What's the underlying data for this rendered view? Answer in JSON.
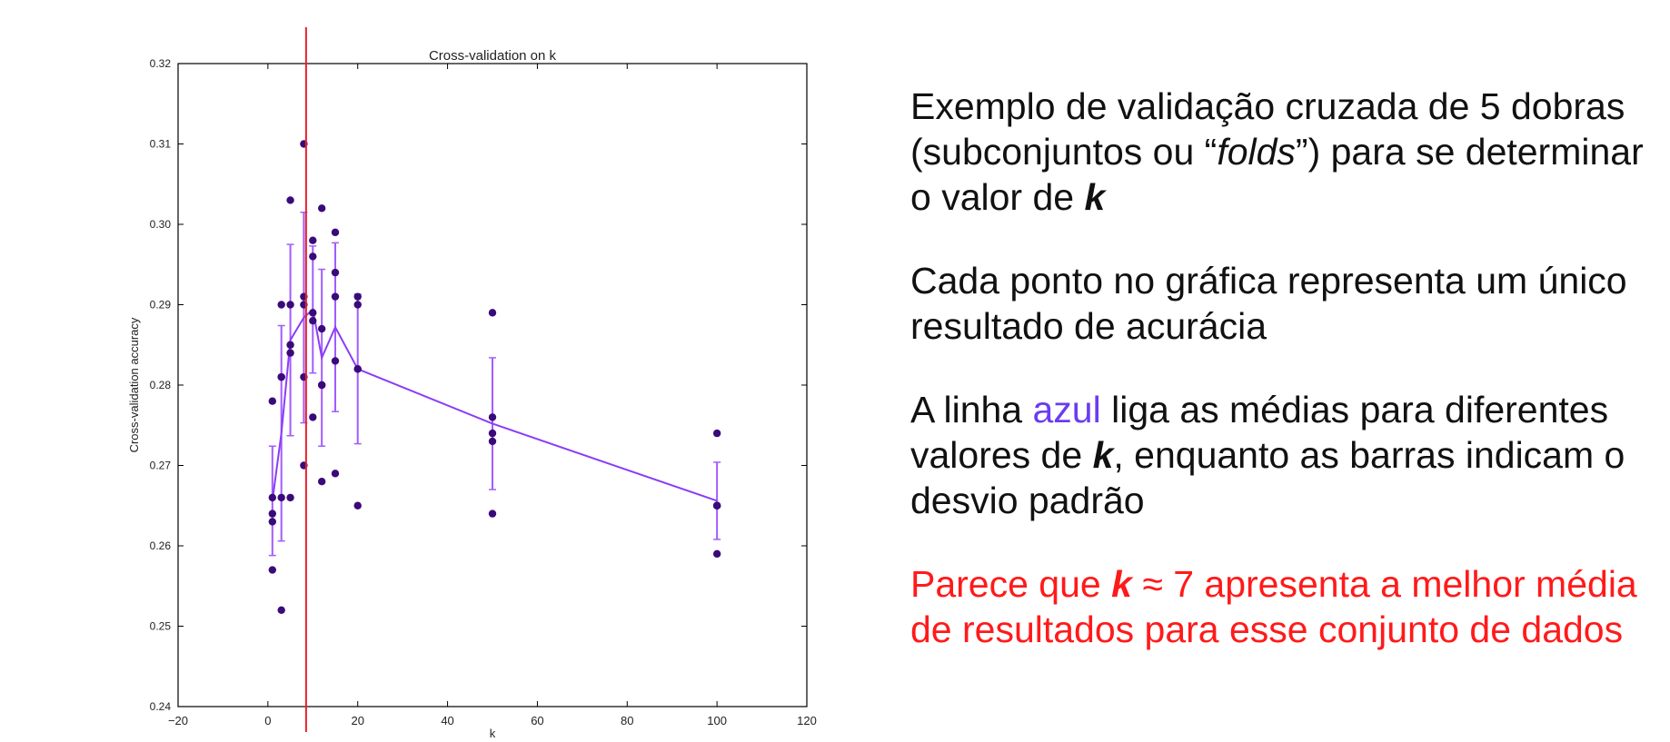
{
  "colors": {
    "points": "#3a0a7a",
    "mean_line": "#8a3df7",
    "error_bars": "#a25cff",
    "marker_line": "#e8202a",
    "azul_word": "#6a3cf0",
    "highlight_text": "#ff1a1a"
  },
  "chart_data": {
    "type": "scatter",
    "title": "Cross-validation on k",
    "xlabel": "k",
    "ylabel": "Cross-validation accuracy",
    "xlim": [
      -20,
      120
    ],
    "ylim": [
      0.24,
      0.32
    ],
    "xticks": [
      -20,
      0,
      20,
      40,
      60,
      80,
      100,
      120
    ],
    "yticks": [
      0.24,
      0.25,
      0.26,
      0.27,
      0.28,
      0.29,
      0.3,
      0.31,
      0.32
    ],
    "xtick_labels": [
      "−20",
      "0",
      "20",
      "40",
      "60",
      "80",
      "100",
      "120"
    ],
    "ytick_labels": [
      "0.24",
      "0.25",
      "0.26",
      "0.27",
      "0.28",
      "0.29",
      "0.30",
      "0.31",
      "0.32"
    ],
    "grid": false,
    "points": [
      {
        "k": 1,
        "values": [
          0.257,
          0.263,
          0.264,
          0.266,
          0.278
        ]
      },
      {
        "k": 3,
        "values": [
          0.252,
          0.266,
          0.281,
          0.281,
          0.29
        ]
      },
      {
        "k": 5,
        "values": [
          0.266,
          0.284,
          0.285,
          0.29,
          0.303
        ]
      },
      {
        "k": 8,
        "values": [
          0.27,
          0.281,
          0.29,
          0.291,
          0.31
        ]
      },
      {
        "k": 10,
        "values": [
          0.276,
          0.288,
          0.289,
          0.296,
          0.298
        ]
      },
      {
        "k": 12,
        "values": [
          0.268,
          0.28,
          0.28,
          0.287,
          0.302
        ]
      },
      {
        "k": 15,
        "values": [
          0.269,
          0.283,
          0.291,
          0.294,
          0.299
        ]
      },
      {
        "k": 20,
        "values": [
          0.265,
          0.282,
          0.282,
          0.29,
          0.291
        ]
      },
      {
        "k": 50,
        "values": [
          0.264,
          0.273,
          0.274,
          0.276,
          0.289
        ]
      },
      {
        "k": 100,
        "values": [
          0.259,
          0.265,
          0.265,
          0.265,
          0.274
        ]
      }
    ],
    "mean_line": {
      "k": [
        1,
        3,
        5,
        8,
        10,
        12,
        15,
        20,
        50,
        100
      ],
      "mean": [
        0.2656,
        0.274,
        0.2856,
        0.2884,
        0.2894,
        0.2834,
        0.2872,
        0.282,
        0.2752,
        0.2656
      ],
      "std": [
        0.0068,
        0.0134,
        0.0119,
        0.0131,
        0.0079,
        0.011,
        0.0105,
        0.0093,
        0.0082,
        0.0048
      ]
    },
    "vertical_marker_k": 8.5
  },
  "text": {
    "p1_a": "Exemplo de validação cruzada de 5 dobras",
    "p1_b": "(subconjuntos ou “",
    "p1_folds": "folds",
    "p1_c": "”) para se determinar",
    "p1_d": "o valor de ",
    "k": "k",
    "p2_a": "Cada ponto no gráfica representa um único",
    "p2_b": "resultado de acurácia",
    "p3_a": "A linha ",
    "p3_azul": "azul",
    "p3_b": " liga as médias para diferentes",
    "p3_c": "valores de ",
    "p3_d": ", enquanto as barras indicam o",
    "p3_e": "desvio padrão",
    "p4_a": "Parece que ",
    "p4_b": " ≈ 7 apresenta a melhor média",
    "p4_c": "de resultados para esse conjunto de dados"
  }
}
